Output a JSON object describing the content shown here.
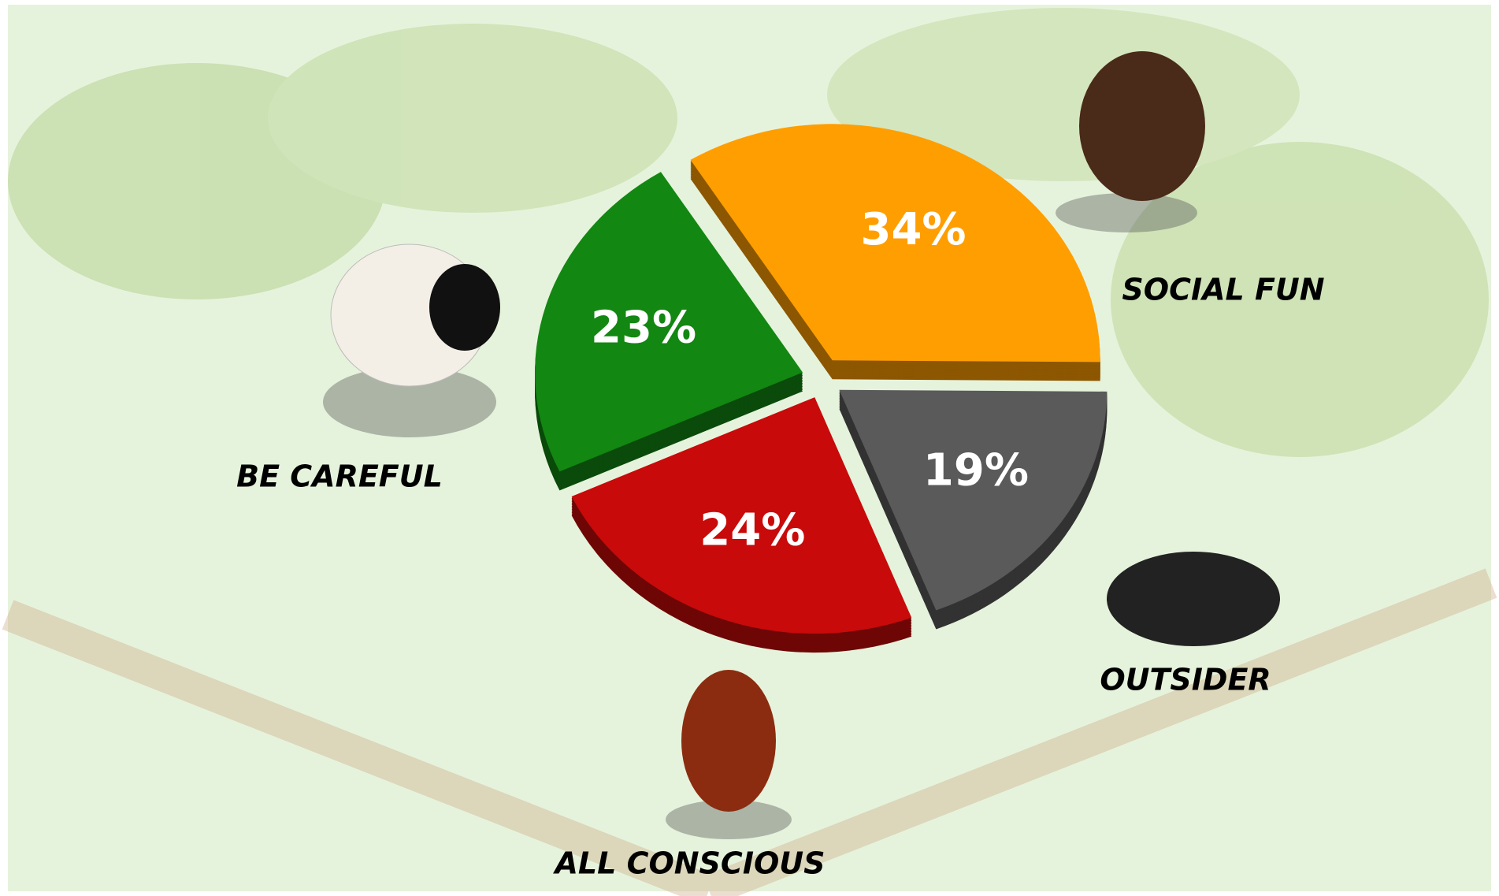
{
  "chart_data": {
    "type": "pie",
    "categories": [
      "SOCIAL FUN",
      "OUTSIDER",
      "ALL CONSCIOUS",
      "BE CAREFUL"
    ],
    "values": [
      34,
      19,
      24,
      23
    ],
    "value_labels": [
      "34%",
      "19%",
      "24%",
      "23%"
    ],
    "colors": [
      "#ff9e00",
      "#5a5a5a",
      "#c80a0a",
      "#128712"
    ]
  }
}
